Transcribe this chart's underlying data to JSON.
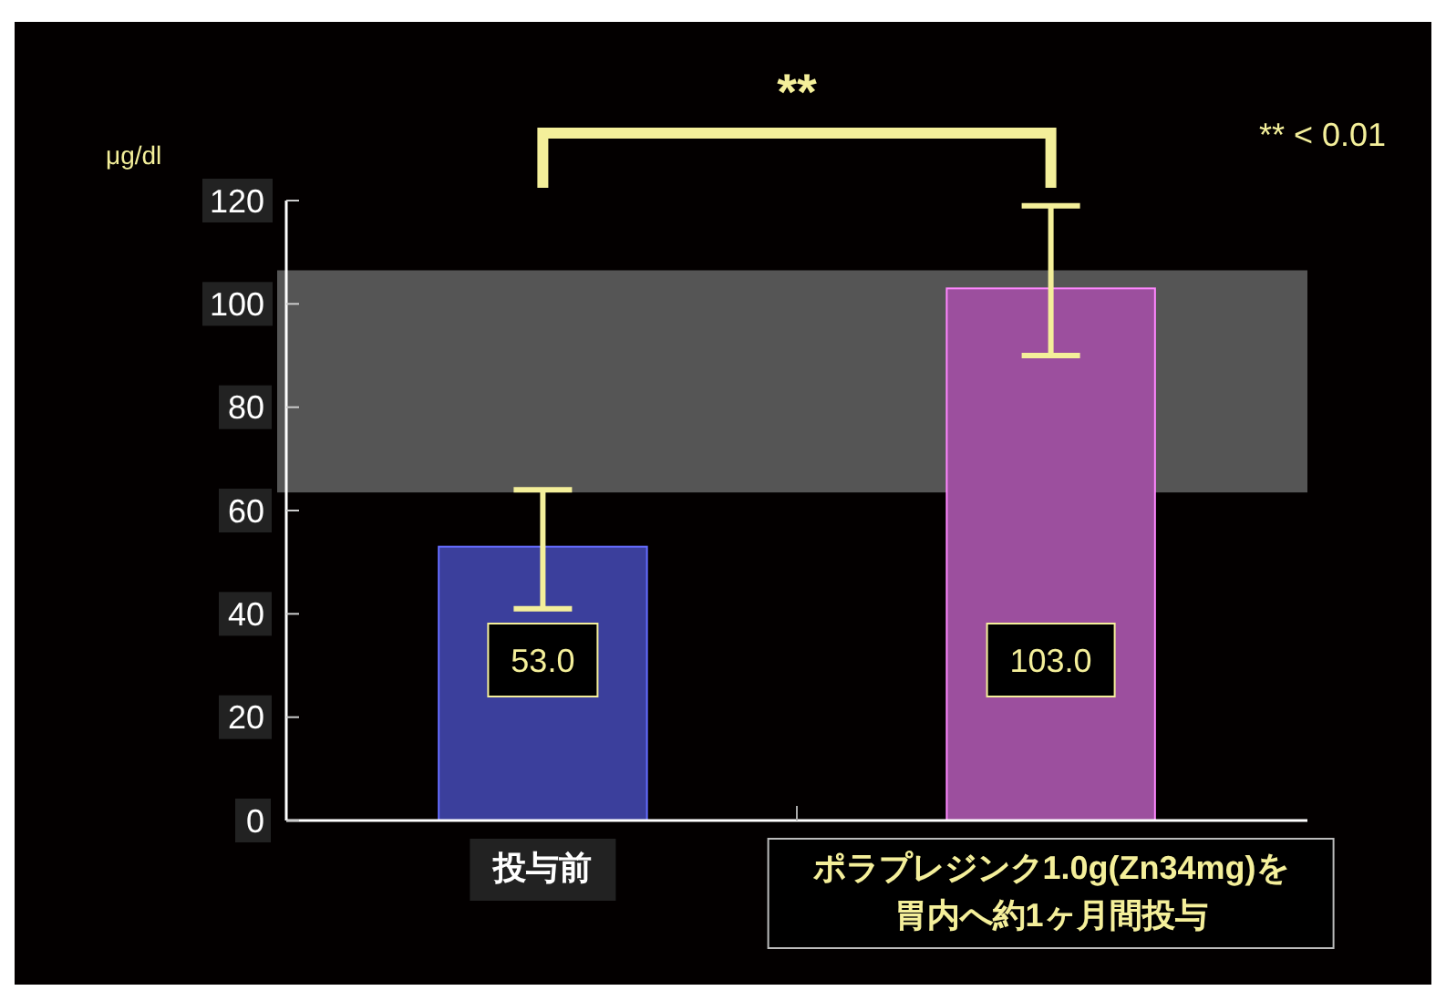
{
  "chart_data": {
    "type": "bar",
    "ylabel": "μg/dl",
    "categories": [
      "投与前",
      "ポラプレジンク1.0g(Zn34mg)を胃内へ約1ヶ月間投与"
    ],
    "values": [
      53,
      103
    ],
    "colors": [
      "#3b3f9c",
      "#9c4f9e"
    ],
    "errors": [
      [
        41,
        64
      ],
      [
        90,
        119
      ]
    ],
    "value_labels": [
      "53.0",
      "103.0"
    ],
    "ylim": [
      0,
      120
    ],
    "yticks": [
      0,
      20,
      40,
      60,
      80,
      100,
      120
    ],
    "bands": [
      {
        "axis": "y",
        "from": 63.5,
        "to": 106.5,
        "color": "#555555"
      }
    ],
    "annotations": [
      "**",
      "** < 0.01"
    ],
    "grid": false
  }
}
